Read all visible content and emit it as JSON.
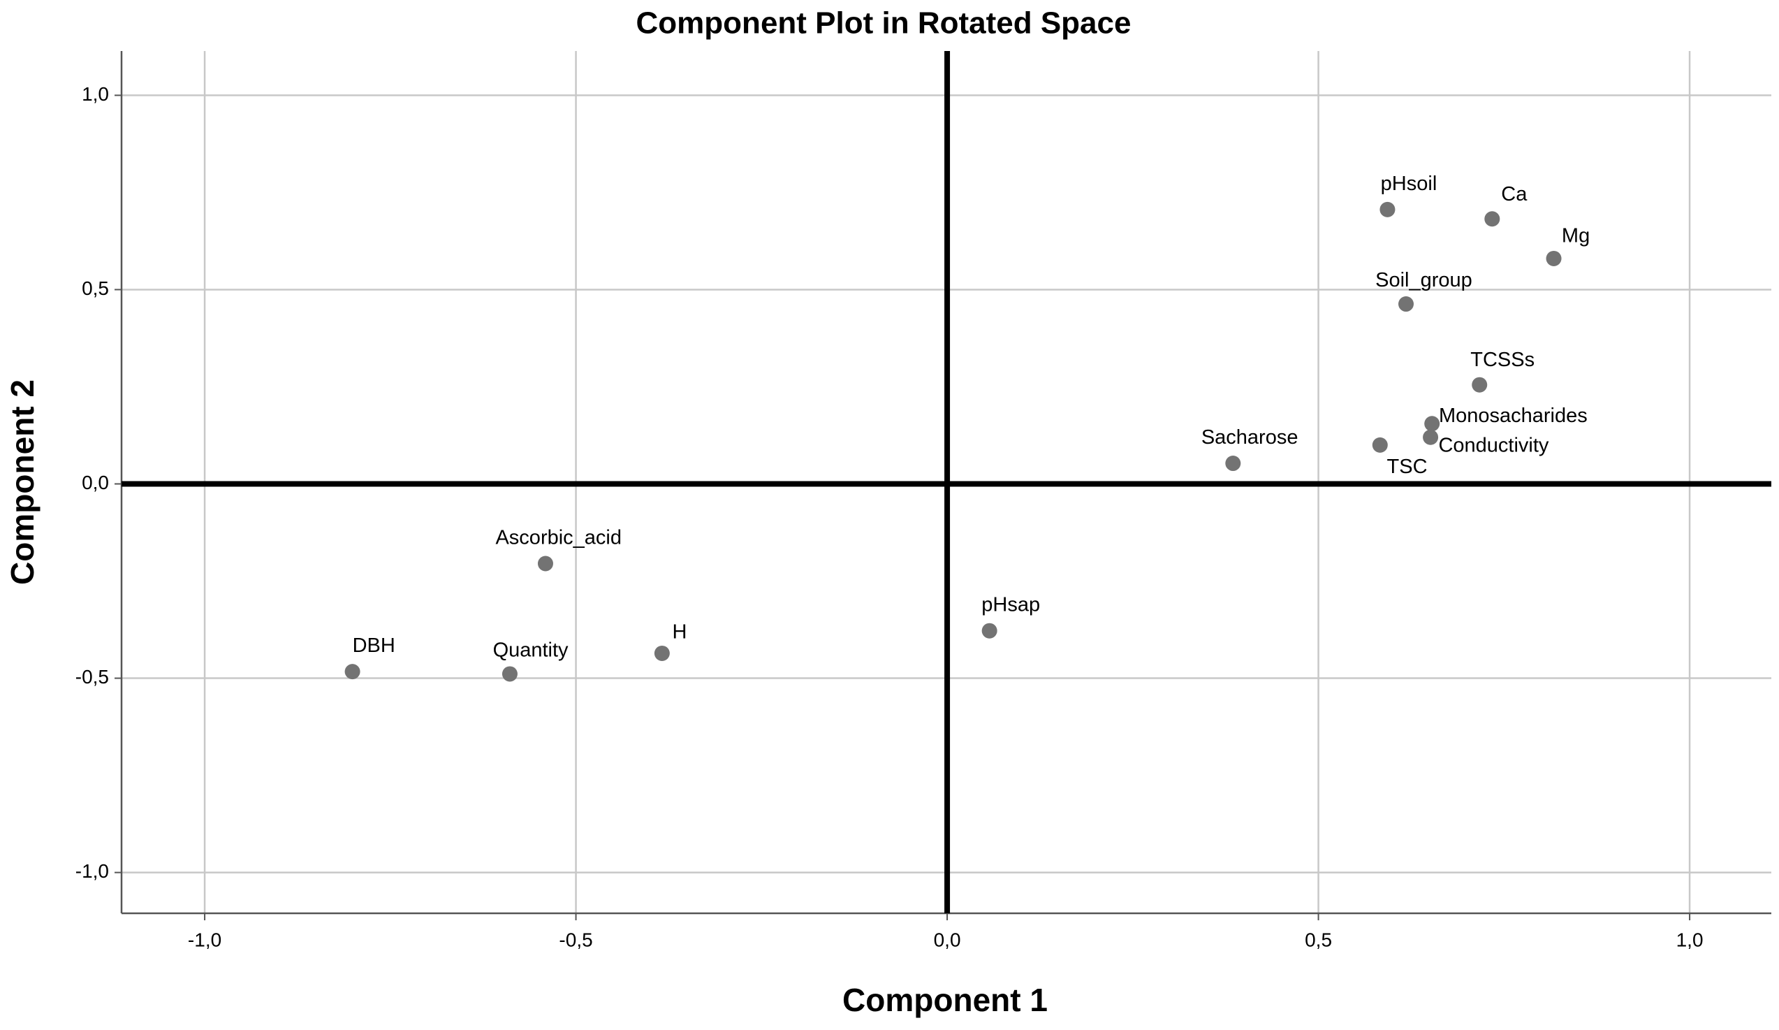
{
  "chart_data": {
    "type": "scatter",
    "title": "Component Plot in Rotated Space",
    "x_label": "Component 1",
    "y_label": "Component 2",
    "point_labels": [
      "pHsoil",
      "Ca",
      "Mg",
      "Soil_group",
      "TCSSs",
      "Monosacharides",
      "Conductivity",
      "TSC",
      "Sacharose",
      "Ascorbic_acid",
      "pHsap",
      "H",
      "DBH",
      "Quantity"
    ],
    "x": [
      0.593,
      0.734,
      0.817,
      0.618,
      0.717,
      0.653,
      0.651,
      0.583,
      0.385,
      -0.541,
      0.057,
      -0.384,
      -0.801,
      -0.589
    ],
    "y": [
      0.706,
      0.682,
      0.58,
      0.463,
      0.255,
      0.155,
      0.12,
      0.1,
      0.053,
      -0.205,
      -0.378,
      -0.436,
      -0.483,
      -0.489
    ],
    "color": "#737373",
    "xlim": [
      -1.112,
      1.11
    ],
    "ylim": [
      -1.105,
      1.114
    ],
    "xticks": [
      {
        "value": -1,
        "label": "-1,0"
      },
      {
        "value": -0.5,
        "label": "-0,5"
      },
      {
        "value": 0,
        "label": "0,0"
      },
      {
        "value": 0.5,
        "label": "0,5"
      },
      {
        "value": 1,
        "label": "1,0"
      }
    ],
    "yticks": [
      {
        "value": -1,
        "label": "-1,0"
      },
      {
        "value": -0.5,
        "label": "-0,5"
      },
      {
        "value": 0,
        "label": "0,0"
      },
      {
        "value": 0.5,
        "label": "0,5"
      },
      {
        "value": 1,
        "label": "1,0"
      }
    ],
    "grid": true
  }
}
